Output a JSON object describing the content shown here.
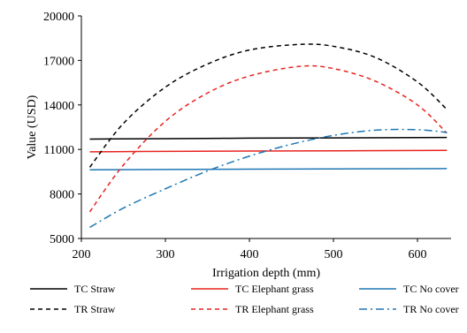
{
  "chart_data": {
    "type": "line",
    "title": "",
    "xlabel": "Irrigation depth (mm)",
    "ylabel": "Value (USD)",
    "xlim": [
      200,
      640
    ],
    "ylim": [
      5000,
      20000
    ],
    "x_ticks": [
      200,
      300,
      400,
      500,
      600
    ],
    "y_ticks": [
      5000,
      8000,
      11000,
      14000,
      17000,
      20000
    ],
    "x_tick_labels": [
      "200",
      "300",
      "400",
      "500",
      "600"
    ],
    "y_tick_labels": [
      "5000",
      "8000",
      "11000",
      "14000",
      "17000",
      "20000"
    ],
    "grid": false,
    "legend_position": "bottom",
    "series": [
      {
        "name": "TC Straw",
        "color": "#000000",
        "dash": "solid",
        "x": [
          210,
          300,
          400,
          500,
          600,
          635
        ],
        "y": [
          11700,
          11730,
          11760,
          11780,
          11800,
          11810
        ]
      },
      {
        "name": "TC Elephant grass",
        "color": "#e8231f",
        "dash": "solid",
        "x": [
          210,
          300,
          400,
          500,
          600,
          635
        ],
        "y": [
          10840,
          10870,
          10890,
          10910,
          10930,
          10940
        ]
      },
      {
        "name": "TC No cover",
        "color": "#1f77b4",
        "dash": "solid",
        "x": [
          210,
          300,
          400,
          500,
          600,
          635
        ],
        "y": [
          9630,
          9650,
          9670,
          9690,
          9700,
          9710
        ]
      },
      {
        "name": "TR Straw",
        "color": "#000000",
        "dash": "dashed",
        "x": [
          210,
          250,
          300,
          350,
          400,
          460,
          500,
          550,
          600,
          635
        ],
        "y": [
          9800,
          12750,
          15200,
          16750,
          17700,
          18080,
          17950,
          17200,
          15550,
          13700
        ]
      },
      {
        "name": "TR Elephant grass",
        "color": "#e8231f",
        "dash": "dashed",
        "x": [
          210,
          250,
          300,
          350,
          400,
          460,
          500,
          550,
          600,
          635
        ],
        "y": [
          6800,
          9950,
          12900,
          14800,
          15950,
          16600,
          16450,
          15600,
          14000,
          12100
        ]
      },
      {
        "name": "TR No cover",
        "color": "#1f77b4",
        "dash": "dashdot",
        "x": [
          210,
          250,
          300,
          350,
          400,
          450,
          500,
          550,
          600,
          635
        ],
        "y": [
          5750,
          7050,
          8350,
          9550,
          10550,
          11350,
          11950,
          12300,
          12330,
          12150
        ]
      }
    ]
  }
}
